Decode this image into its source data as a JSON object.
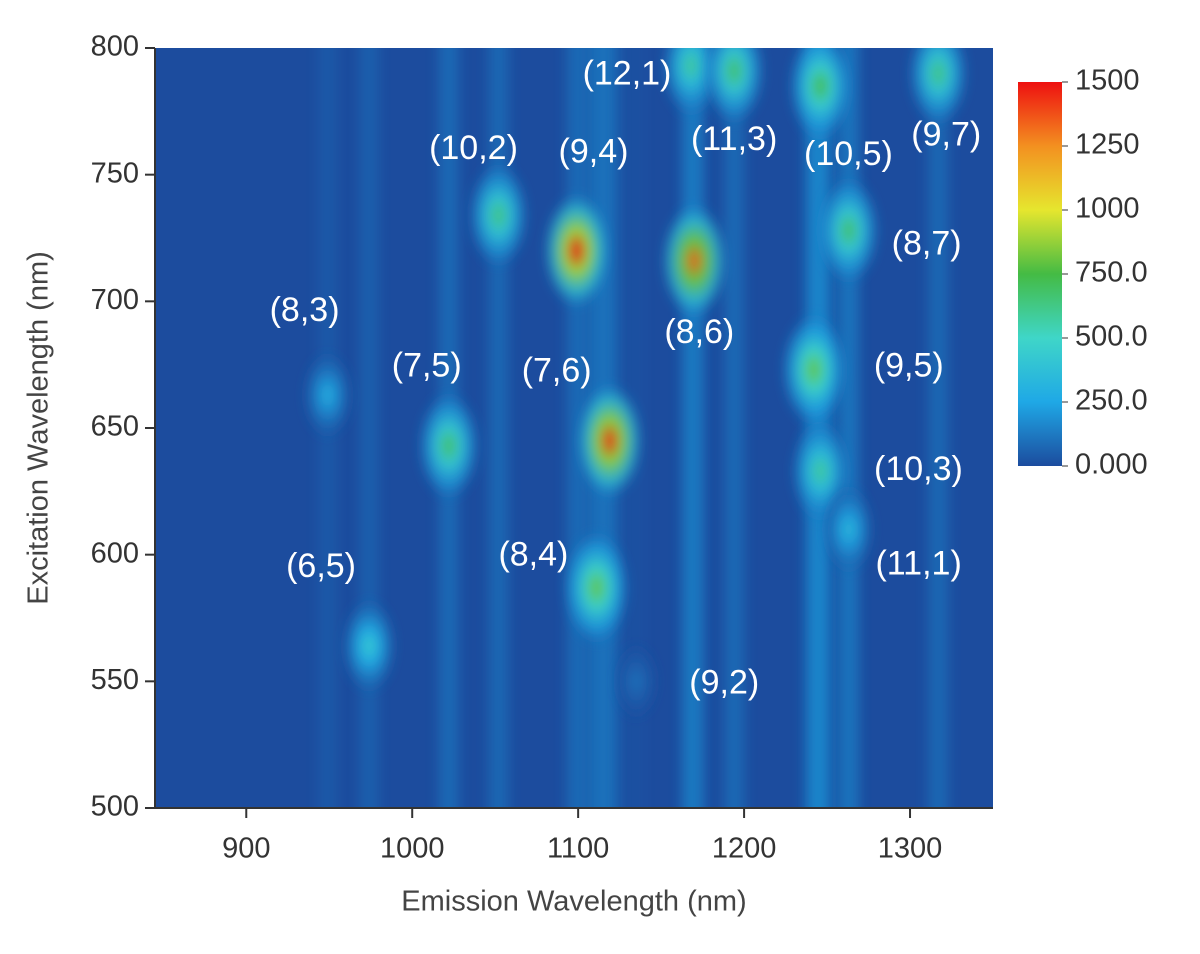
{
  "chart_data": {
    "type": "heatmap",
    "xlabel": "Emission Wavelength (nm)",
    "ylabel": "Excitation Wavelength (nm)",
    "xlim": [
      845,
      1350
    ],
    "ylim": [
      500,
      800
    ],
    "xticks": [
      900,
      1000,
      1100,
      1200,
      1300
    ],
    "yticks": [
      500,
      550,
      600,
      650,
      700,
      750,
      800
    ],
    "colorbar": {
      "lim": [
        0,
        1500
      ],
      "ticks": [
        {
          "value": 0,
          "label": "0.000"
        },
        {
          "value": 250,
          "label": "250.0"
        },
        {
          "value": 500,
          "label": "500.0"
        },
        {
          "value": 750,
          "label": "750.0"
        },
        1000,
        1250,
        1500
      ],
      "colors": [
        "#1c4c9e",
        "#1fa8e6",
        "#3fd6c8",
        "#44bb44",
        "#e6e62e",
        "#f39020",
        "#ee1010"
      ]
    },
    "peaks": [
      {
        "label": "(8,3)",
        "x": 949,
        "y": 663,
        "value": 300
      },
      {
        "label": "(6,5)",
        "x": 974,
        "y": 564,
        "value": 450
      },
      {
        "label": "(7,5)",
        "x": 1022,
        "y": 643,
        "value": 700
      },
      {
        "label": "(10,2)",
        "x": 1052,
        "y": 734,
        "value": 650
      },
      {
        "label": "(9,4)",
        "x": 1099,
        "y": 720,
        "value": 1500
      },
      {
        "label": "(7,6)",
        "x": 1119,
        "y": 645,
        "value": 1450
      },
      {
        "label": "(8,4)",
        "x": 1111,
        "y": 587,
        "value": 800
      },
      {
        "label": "(8,6)",
        "x": 1170,
        "y": 716,
        "value": 1350
      },
      {
        "label": "(12,1)",
        "x": 1168,
        "y": 793,
        "value": 600
      },
      {
        "label": "(11,3)",
        "x": 1194,
        "y": 791,
        "value": 700
      },
      {
        "label": "(10,5)",
        "x": 1246,
        "y": 785,
        "value": 750
      },
      {
        "label": "(9,7)",
        "x": 1317,
        "y": 790,
        "value": 650
      },
      {
        "label": "(8,7)",
        "x": 1263,
        "y": 728,
        "value": 700
      },
      {
        "label": "(9,5)",
        "x": 1242,
        "y": 673,
        "value": 800
      },
      {
        "label": "(10,3)",
        "x": 1246,
        "y": 633,
        "value": 600
      },
      {
        "label": "(11,1)",
        "x": 1263,
        "y": 610,
        "value": 350
      },
      {
        "label": "(9,2)",
        "x": 1135,
        "y": 550,
        "value": 100
      }
    ]
  }
}
